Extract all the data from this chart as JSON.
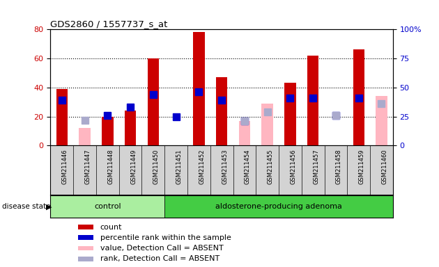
{
  "title": "GDS2860 / 1557737_s_at",
  "samples": [
    "GSM211446",
    "GSM211447",
    "GSM211448",
    "GSM211449",
    "GSM211450",
    "GSM211451",
    "GSM211452",
    "GSM211453",
    "GSM211454",
    "GSM211455",
    "GSM211456",
    "GSM211457",
    "GSM211458",
    "GSM211459",
    "GSM211460"
  ],
  "count": [
    39,
    0,
    20,
    24,
    60,
    0,
    78,
    47,
    0,
    0,
    43,
    62,
    0,
    66,
    0
  ],
  "count_absent": [
    0,
    12,
    0,
    0,
    0,
    0,
    0,
    0,
    17,
    29,
    0,
    0,
    0,
    0,
    34
  ],
  "percentile": [
    39,
    0,
    26,
    33,
    44,
    25,
    46,
    39,
    21,
    0,
    41,
    41,
    26,
    41,
    0
  ],
  "percentile_absent": [
    0,
    22,
    0,
    0,
    0,
    0,
    0,
    0,
    21,
    29,
    0,
    0,
    26,
    0,
    36
  ],
  "n_control": 5,
  "ylim_left": [
    0,
    80
  ],
  "ylim_right": [
    0,
    100
  ],
  "yticks_left": [
    0,
    20,
    40,
    60,
    80
  ],
  "yticks_right": [
    0,
    25,
    50,
    75,
    100
  ],
  "color_count": "#CC0000",
  "color_count_absent": "#FFB6C1",
  "color_percentile": "#0000CC",
  "color_percentile_absent": "#AAAACC",
  "bg_color": "#D3D3D3",
  "plot_bg": "#FFFFFF",
  "bar_width": 0.5,
  "marker_size": 7
}
